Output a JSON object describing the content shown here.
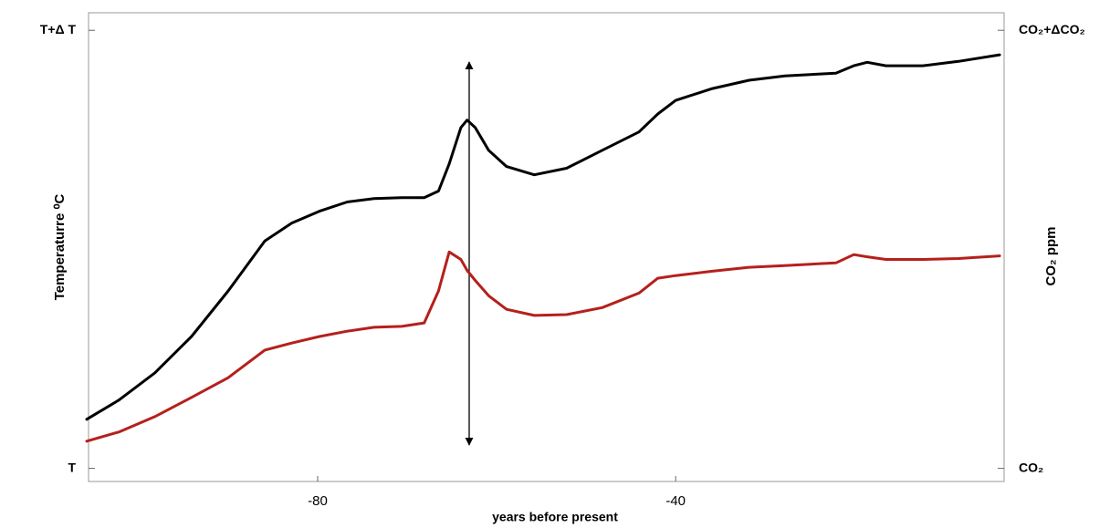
{
  "chart_data": {
    "type": "line",
    "xlabel": "years before present",
    "ylabel": "Temperaturre ⁰C",
    "y2label": "CO₂  ppm",
    "x": [
      -105.8,
      -102.2,
      -98.2,
      -94.1,
      -90.0,
      -85.9,
      -82.9,
      -79.8,
      -76.7,
      -73.7,
      -70.6,
      -68.1,
      -66.5,
      -65.3,
      -64.0,
      -63.3,
      -62.4,
      -60.9,
      -58.9,
      -55.8,
      -52.2,
      -48.2,
      -44.1,
      -42.0,
      -40.0,
      -35.9,
      -31.8,
      -27.8,
      -22.1,
      -20.1,
      -18.6,
      -16.5,
      -12.4,
      -8.4,
      -3.8
    ],
    "series": [
      {
        "color": "#000000",
        "values": [
          0.112,
          0.156,
          0.218,
          0.301,
          0.405,
          0.519,
          0.56,
          0.587,
          0.608,
          0.616,
          0.618,
          0.618,
          0.633,
          0.695,
          0.778,
          0.795,
          0.778,
          0.726,
          0.689,
          0.67,
          0.685,
          0.726,
          0.768,
          0.809,
          0.84,
          0.867,
          0.886,
          0.896,
          0.902,
          0.919,
          0.927,
          0.919,
          0.919,
          0.929,
          0.944
        ]
      },
      {
        "color": "#b5201c",
        "axis": "y2",
        "values": [
          0.062,
          0.083,
          0.118,
          0.162,
          0.207,
          0.27,
          0.286,
          0.301,
          0.313,
          0.322,
          0.324,
          0.332,
          0.405,
          0.494,
          0.477,
          0.452,
          0.429,
          0.394,
          0.363,
          0.349,
          0.351,
          0.367,
          0.4,
          0.434,
          0.44,
          0.45,
          0.459,
          0.463,
          0.469,
          0.488,
          0.483,
          0.477,
          0.477,
          0.479,
          0.485
        ]
      }
    ],
    "xlim": [
      -105.6,
      -3.3
    ],
    "xticks": [
      -80,
      -40
    ],
    "ylim": [
      -0.03,
      1.04
    ],
    "yticks": [
      {
        "value": 0,
        "label": "T"
      },
      {
        "value": 1,
        "label": "T+Δ T"
      }
    ],
    "y2lim": [
      -0.03,
      1.04
    ],
    "y2ticks": [
      {
        "value": 0,
        "label": "CO₂"
      },
      {
        "value": 1,
        "label": "CO₂+ΔCO₂"
      }
    ]
  }
}
